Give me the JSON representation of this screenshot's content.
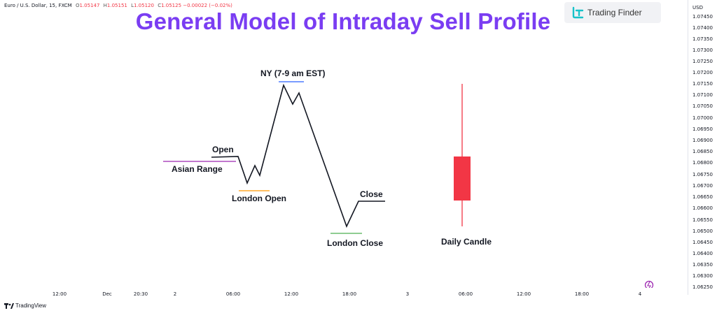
{
  "ohlc": {
    "symbol": "Euro / U.S. Dollar, 15, FXCM",
    "o_label": "O",
    "o_value": "1.05147",
    "h_label": "H",
    "h_value": "1.05151",
    "l_label": "L",
    "l_value": "1.05120",
    "c_label": "C",
    "c_value": "1.05125",
    "change": "−0.00022 (−0.02%)"
  },
  "title": "General Model of Intraday Sell Profile",
  "brand": {
    "name": "Trading Finder",
    "logo_icon": "trading-finder-logo-icon"
  },
  "price_axis": {
    "currency": "USD",
    "ticks": [
      "1.07450",
      "1.07400",
      "1.07350",
      "1.07300",
      "1.07250",
      "1.07200",
      "1.07150",
      "1.07100",
      "1.07050",
      "1.07000",
      "1.06950",
      "1.06900",
      "1.06850",
      "1.06800",
      "1.06750",
      "1.06700",
      "1.06650",
      "1.06600",
      "1.06550",
      "1.06500",
      "1.06450",
      "1.06400",
      "1.06350",
      "1.06300",
      "1.06250"
    ]
  },
  "time_axis": {
    "ticks": [
      "12:00",
      "Dec",
      "20:30",
      "2",
      "06:00",
      "12:00",
      "18:00",
      "3",
      "06:00",
      "12:00",
      "18:00",
      "4"
    ]
  },
  "labels": {
    "open": "Open",
    "asian_range": "Asian Range",
    "london_open": "London Open",
    "ny": "NY (7-9 am EST)",
    "close": "Close",
    "london_close": "London Close",
    "daily_candle": "Daily Candle"
  },
  "colors": {
    "title": "#7a3df2",
    "asian_range_line": "#9c27b0",
    "london_open_line": "#ff9800",
    "ny_line": "#2962ff",
    "london_close_line": "#4caf50",
    "candle": "#f23645",
    "path": "#131722"
  },
  "footer": {
    "logo": "TradingView"
  }
}
